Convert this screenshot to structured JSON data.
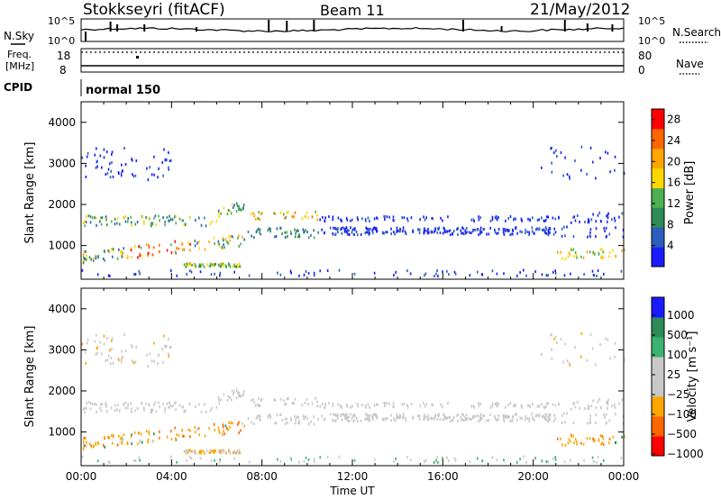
{
  "header": {
    "station": "Stokkseyri (fitACF)",
    "beam": "Beam 11",
    "date": "21/May/2012"
  },
  "noise_panel": {
    "left_label": "N.Sky",
    "left_ticks": [
      "10^5",
      "10^0"
    ],
    "right_ticks": [
      "10^5",
      "10^0"
    ],
    "right_label": "N.Search"
  },
  "freq_panel": {
    "left_label_1": "Freq.",
    "left_label_2": "[MHz]",
    "left_ticks": [
      "18",
      "8"
    ],
    "right_ticks": [
      "80",
      "0"
    ],
    "right_label": "Nave",
    "cpid_label": "CPID",
    "cpid_value": "normal 150"
  },
  "colors": {
    "power_scale": [
      "#1a1aff",
      "#2b5fbf",
      "#2e8b57",
      "#4caf50",
      "#ffd700",
      "#ffa500",
      "#ff6600",
      "#ff0000"
    ],
    "velocity_scale": [
      "#ff0000",
      "#ff6600",
      "#ffa500",
      "#c8c8c8",
      "#c8c8c8",
      "#3cb371",
      "#2e8b57",
      "#1a1aff"
    ]
  },
  "chart_data": [
    {
      "type": "heatmap",
      "name": "power",
      "ylabel": "Slant Range [km]",
      "yticks": [
        "1000",
        "2000",
        "3000",
        "4000"
      ],
      "ylim": [
        180,
        4500
      ],
      "xticks": [
        "00:00",
        "04:00",
        "08:00",
        "12:00",
        "16:00",
        "20:00",
        "00:00"
      ],
      "xlim_hours": [
        0,
        24
      ],
      "colorbar_label": "Power [dB]",
      "colorbar_ticks": [
        "4",
        "8",
        "12",
        "16",
        "20",
        "24",
        "28"
      ],
      "colorbar_range": [
        0,
        30
      ]
    },
    {
      "type": "heatmap",
      "name": "velocity",
      "ylabel": "Slant Range [km]",
      "yticks": [
        "1000",
        "2000",
        "3000",
        "4000"
      ],
      "ylim": [
        180,
        4500
      ],
      "xticks": [
        "00:00",
        "04:00",
        "08:00",
        "12:00",
        "16:00",
        "20:00",
        "00:00"
      ],
      "xlabel": "Time UT",
      "colorbar_label": "Velocity [m s⁻¹]",
      "colorbar_ticks": [
        "1000",
        "500",
        "100",
        "25",
        "−25",
        "−100",
        "−500",
        "−1000"
      ]
    }
  ]
}
